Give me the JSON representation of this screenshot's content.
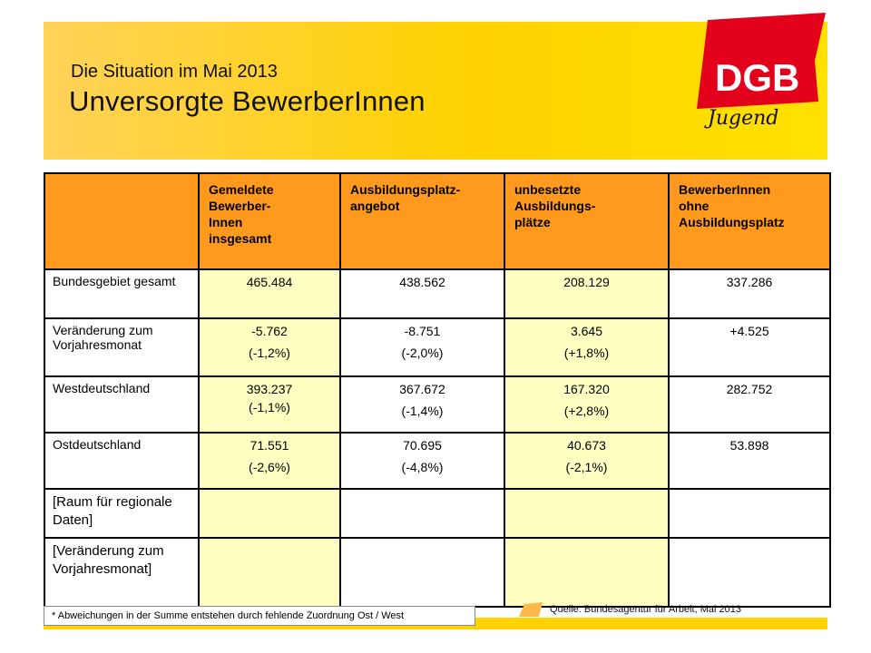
{
  "header": {
    "subtitle": "Die Situation im Mai 2013",
    "title": "Unversorgte BewerberInnen"
  },
  "logo": {
    "text": "DGB",
    "script": "Jugend",
    "color": "#e3001b"
  },
  "table": {
    "columns": [
      "Gemeldete Bewerber-Innen insgesamt",
      "Ausbildungsplatz-angebot",
      "unbesetzte Ausbildungs-plätze",
      "BewerberInnen ohne Ausbildungsplatz"
    ],
    "column_display": [
      [
        "Gemeldete",
        "Bewerber-",
        "Innen",
        "insgesamt"
      ],
      [
        "Ausbildungsplatz-",
        "angebot"
      ],
      [
        "unbesetzte",
        "Ausbildungs-",
        "plätze"
      ],
      [
        "BewerberInnen",
        "ohne",
        "Ausbildungsplatz"
      ]
    ],
    "rows": [
      {
        "label": "Bundesgebiet gesamt",
        "values": [
          "465.484",
          "438.562",
          "208.129",
          "337.286"
        ],
        "changes": [
          "",
          "",
          "",
          ""
        ]
      },
      {
        "label": "Veränderung zum Vorjahresmonat",
        "values": [
          "-5.762",
          "-8.751",
          "3.645",
          "+4.525"
        ],
        "changes": [
          "(-1,2%)",
          "(-2,0%)",
          "(+1,8%)",
          ""
        ]
      },
      {
        "label": "Westdeutschland",
        "values": [
          "393.237",
          "367.672",
          "167.320",
          "282.752"
        ],
        "changes": [
          "(-1,1%)",
          "(-1,4%)",
          "(+2,8%)",
          ""
        ]
      },
      {
        "label": "Ostdeutschland",
        "values": [
          "71.551",
          "70.695",
          "40.673",
          "53.898"
        ],
        "changes": [
          "(-2,6%)",
          "(-4,8%)",
          "(-2,1%)",
          ""
        ]
      },
      {
        "label": "[Raum für regionale Daten]",
        "values": [
          "",
          "",
          "",
          ""
        ],
        "changes": [
          "",
          "",
          "",
          ""
        ]
      },
      {
        "label": "[Veränderung zum Vorjahresmonat]",
        "values": [
          "",
          "",
          "",
          ""
        ],
        "changes": [
          "",
          "",
          "",
          ""
        ]
      }
    ]
  },
  "footnote": "* Abweichungen in der Summe entstehen durch fehlende Zuordnung Ost / West",
  "source": "Quelle:  Bundesagentur für Arbeit, Mai 2013",
  "colors": {
    "banner": "#ffd200",
    "header_cells": "#ff9a1e",
    "yellow_cells": "#ffffc2",
    "logo_red": "#e3001b"
  }
}
